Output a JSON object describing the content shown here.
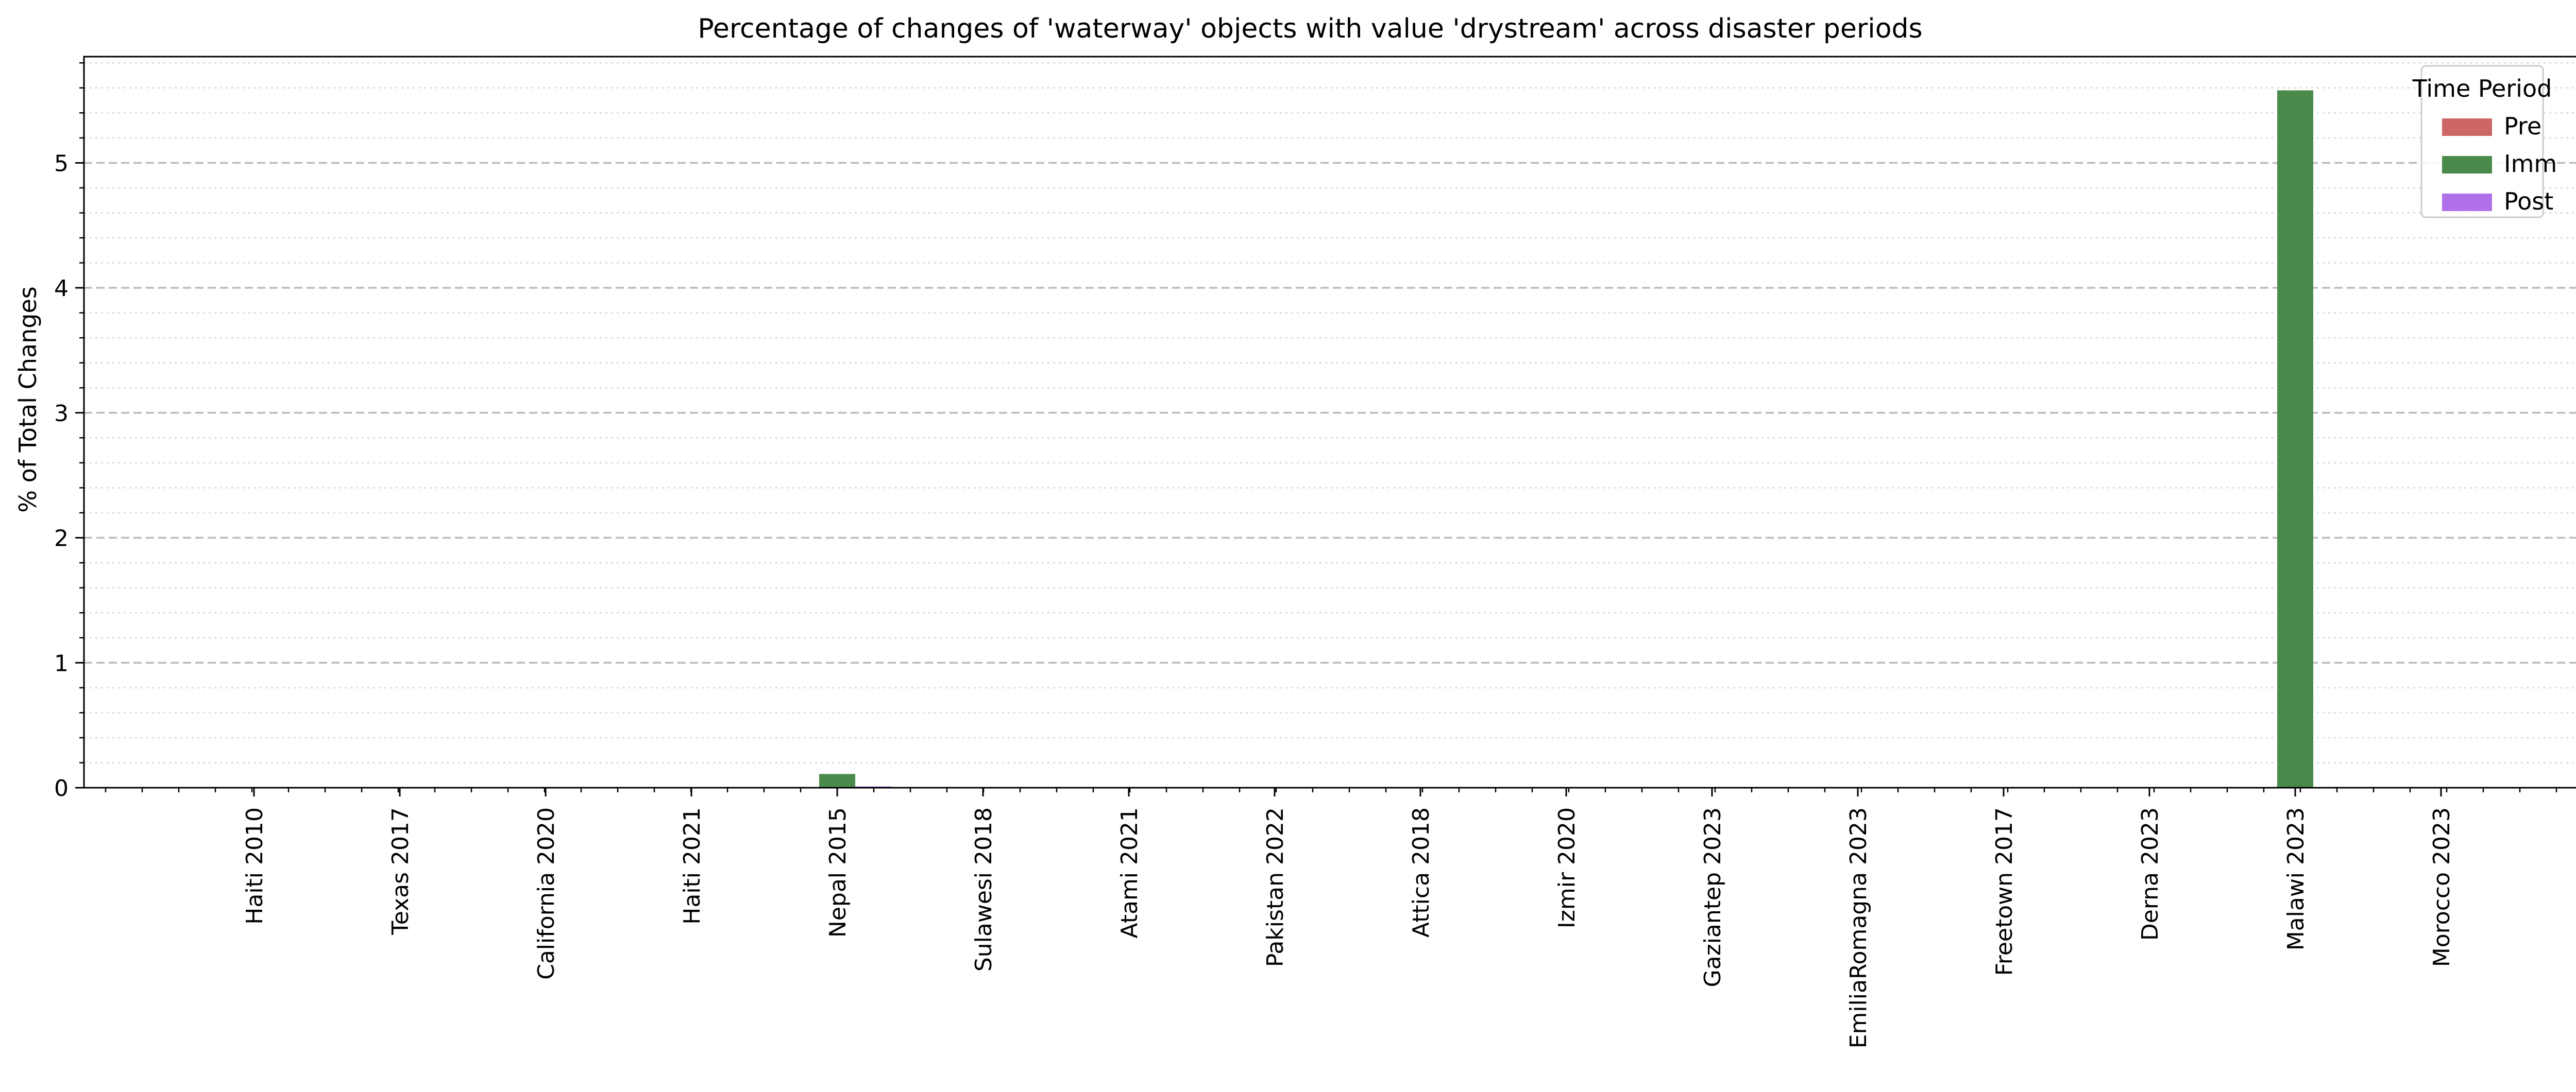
{
  "chart_data": {
    "type": "bar",
    "title": "Percentage of changes of 'waterway' objects with value 'drystream' across disaster periods",
    "xlabel": "",
    "ylabel": "% of Total Changes",
    "ylim": [
      0,
      5.85
    ],
    "yticks": [
      "0",
      "1",
      "2",
      "3",
      "4",
      "5"
    ],
    "grid": true,
    "legend_placement": "top-right",
    "legend_title": "Time Period",
    "categories": [
      "Haiti 2010",
      "Texas 2017",
      "California 2020",
      "Haiti 2021",
      "Nepal 2015",
      "Sulawesi 2018",
      "Atami 2021",
      "Pakistan 2022",
      "Attica 2018",
      "Izmir 2020",
      "Gaziantep 2023",
      "EmiliaRomagna 2023",
      "Freetown 2017",
      "Derna 2023",
      "Malawi 2023",
      "Morocco 2023"
    ],
    "series": [
      {
        "name": "Pre",
        "color": "#cd6766",
        "values": [
          0,
          0,
          0,
          0,
          0,
          0,
          0,
          0,
          0,
          0,
          0,
          0,
          0,
          0,
          0,
          0
        ]
      },
      {
        "name": "Imm",
        "color": "#4a8a4a",
        "values": [
          0,
          0,
          0,
          0,
          0.11,
          0,
          0,
          0,
          0,
          0,
          0,
          0,
          0,
          0,
          5.58,
          0
        ]
      },
      {
        "name": "Post",
        "color": "#b070ea",
        "values": [
          0,
          0,
          0,
          0,
          0.01,
          0,
          0,
          0,
          0,
          0,
          0,
          0,
          0,
          0,
          0,
          0
        ]
      }
    ]
  }
}
